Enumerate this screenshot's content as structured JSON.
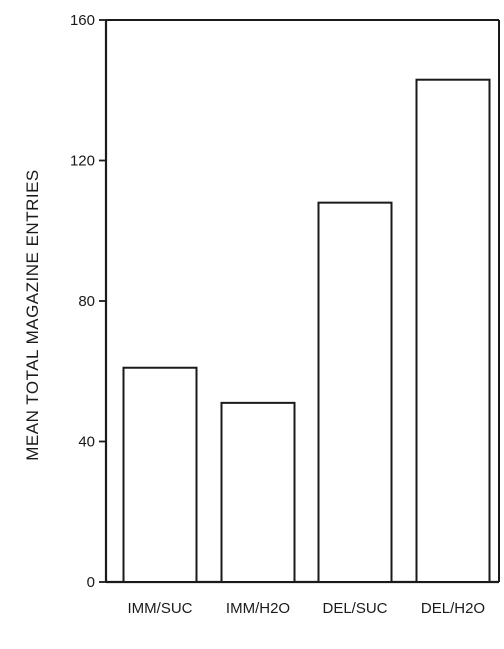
{
  "chart_data": {
    "type": "bar",
    "categories": [
      "IMM/SUC",
      "IMM/H2O",
      "DEL/SUC",
      "DEL/H2O"
    ],
    "values": [
      61,
      51,
      108,
      143
    ],
    "title": "",
    "xlabel": "",
    "ylabel": "MEAN TOTAL MAGAZINE ENTRIES",
    "ylim": [
      0,
      160
    ],
    "yticks": [
      0,
      40,
      80,
      120,
      160
    ],
    "grid": false,
    "legend": "none",
    "colors": {
      "bar_fill": "#ffffff",
      "bar_stroke": "#1a1a1a",
      "axis": "#1a1a1a"
    }
  }
}
